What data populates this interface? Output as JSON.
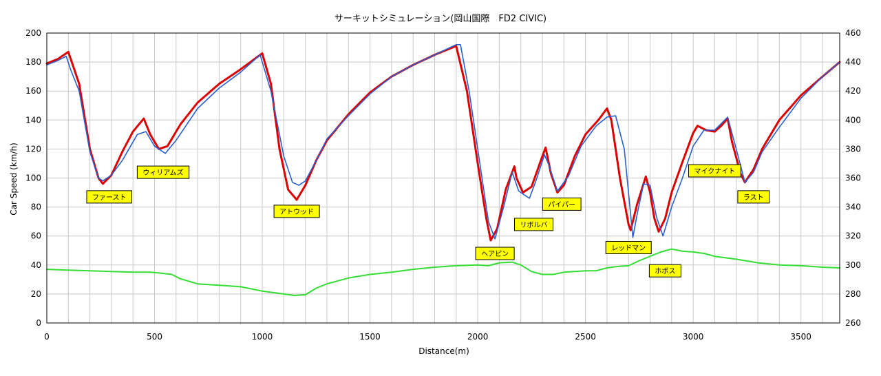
{
  "chart_data": {
    "type": "line",
    "title": "サーキットシミュレーション(岡山国際　FD2 CIVIC)",
    "xlabel": "Distance(m)",
    "ylabel": "Car Speed (km/h)",
    "y2label": "",
    "xlim": [
      0,
      3680
    ],
    "ylim": [
      0,
      200
    ],
    "y2lim": [
      260,
      460
    ],
    "xticks": [
      0,
      500,
      1000,
      1500,
      2000,
      2500,
      3000,
      3500
    ],
    "yticks": [
      0,
      20,
      40,
      60,
      80,
      100,
      120,
      140,
      160,
      180,
      200
    ],
    "y2ticks": [
      260,
      280,
      300,
      320,
      340,
      360,
      380,
      400,
      420,
      440,
      460
    ],
    "grid": true,
    "colors": {
      "simulated": "#dd0000",
      "measured": "#2a5fd0",
      "elevation": "#33dd33"
    },
    "series": [
      {
        "key": "simulated",
        "axis": "left",
        "points": [
          [
            0,
            179
          ],
          [
            50,
            182
          ],
          [
            100,
            187
          ],
          [
            150,
            165
          ],
          [
            200,
            120
          ],
          [
            240,
            100
          ],
          [
            260,
            96
          ],
          [
            300,
            102
          ],
          [
            350,
            118
          ],
          [
            400,
            132
          ],
          [
            450,
            141
          ],
          [
            480,
            130
          ],
          [
            520,
            120
          ],
          [
            560,
            122
          ],
          [
            620,
            137
          ],
          [
            700,
            152
          ],
          [
            800,
            165
          ],
          [
            900,
            175
          ],
          [
            1000,
            186
          ],
          [
            1040,
            165
          ],
          [
            1080,
            120
          ],
          [
            1120,
            92
          ],
          [
            1160,
            85
          ],
          [
            1200,
            95
          ],
          [
            1250,
            112
          ],
          [
            1300,
            126
          ],
          [
            1400,
            144
          ],
          [
            1500,
            159
          ],
          [
            1600,
            170
          ],
          [
            1700,
            178
          ],
          [
            1800,
            185
          ],
          [
            1900,
            191
          ],
          [
            1950,
            160
          ],
          [
            2000,
            110
          ],
          [
            2040,
            72
          ],
          [
            2060,
            57
          ],
          [
            2090,
            65
          ],
          [
            2130,
            92
          ],
          [
            2170,
            108
          ],
          [
            2180,
            100
          ],
          [
            2210,
            90
          ],
          [
            2250,
            94
          ],
          [
            2300,
            115
          ],
          [
            2315,
            121
          ],
          [
            2340,
            103
          ],
          [
            2370,
            90
          ],
          [
            2400,
            95
          ],
          [
            2450,
            115
          ],
          [
            2500,
            130
          ],
          [
            2560,
            140
          ],
          [
            2600,
            148
          ],
          [
            2620,
            140
          ],
          [
            2660,
            100
          ],
          [
            2700,
            68
          ],
          [
            2710,
            64
          ],
          [
            2740,
            82
          ],
          [
            2780,
            101
          ],
          [
            2800,
            90
          ],
          [
            2820,
            72
          ],
          [
            2840,
            63
          ],
          [
            2870,
            72
          ],
          [
            2900,
            90
          ],
          [
            2950,
            111
          ],
          [
            3000,
            131
          ],
          [
            3020,
            136
          ],
          [
            3060,
            133
          ],
          [
            3100,
            132
          ],
          [
            3130,
            136
          ],
          [
            3160,
            141
          ],
          [
            3180,
            125
          ],
          [
            3220,
            103
          ],
          [
            3240,
            97
          ],
          [
            3280,
            106
          ],
          [
            3320,
            120
          ],
          [
            3400,
            140
          ],
          [
            3500,
            157
          ],
          [
            3600,
            170
          ],
          [
            3680,
            180
          ]
        ]
      },
      {
        "key": "measured",
        "axis": "left",
        "points": [
          [
            0,
            178
          ],
          [
            50,
            181
          ],
          [
            90,
            184
          ],
          [
            110,
            175
          ],
          [
            150,
            160
          ],
          [
            200,
            118
          ],
          [
            240,
            100
          ],
          [
            260,
            98
          ],
          [
            300,
            102
          ],
          [
            350,
            112
          ],
          [
            420,
            130
          ],
          [
            460,
            132
          ],
          [
            500,
            122
          ],
          [
            550,
            117
          ],
          [
            600,
            126
          ],
          [
            700,
            148
          ],
          [
            800,
            162
          ],
          [
            900,
            173
          ],
          [
            990,
            185
          ],
          [
            1040,
            160
          ],
          [
            1100,
            115
          ],
          [
            1140,
            97
          ],
          [
            1170,
            95
          ],
          [
            1200,
            98
          ],
          [
            1250,
            112
          ],
          [
            1300,
            127
          ],
          [
            1400,
            143
          ],
          [
            1500,
            158
          ],
          [
            1600,
            170
          ],
          [
            1700,
            178
          ],
          [
            1800,
            185
          ],
          [
            1900,
            192
          ],
          [
            1920,
            192
          ],
          [
            1960,
            160
          ],
          [
            2000,
            120
          ],
          [
            2050,
            70
          ],
          [
            2080,
            58
          ],
          [
            2120,
            80
          ],
          [
            2160,
            104
          ],
          [
            2190,
            91
          ],
          [
            2220,
            88
          ],
          [
            2240,
            86
          ],
          [
            2270,
            98
          ],
          [
            2310,
            116
          ],
          [
            2330,
            109
          ],
          [
            2370,
            91
          ],
          [
            2420,
            101
          ],
          [
            2480,
            122
          ],
          [
            2550,
            136
          ],
          [
            2600,
            142
          ],
          [
            2640,
            143
          ],
          [
            2680,
            120
          ],
          [
            2720,
            59
          ],
          [
            2740,
            75
          ],
          [
            2770,
            96
          ],
          [
            2800,
            95
          ],
          [
            2830,
            73
          ],
          [
            2860,
            60
          ],
          [
            2900,
            80
          ],
          [
            2950,
            100
          ],
          [
            3000,
            122
          ],
          [
            3050,
            133
          ],
          [
            3100,
            133
          ],
          [
            3160,
            142
          ],
          [
            3200,
            120
          ],
          [
            3240,
            97
          ],
          [
            3280,
            104
          ],
          [
            3320,
            118
          ],
          [
            3400,
            135
          ],
          [
            3500,
            155
          ],
          [
            3600,
            170
          ],
          [
            3680,
            180
          ]
        ]
      },
      {
        "key": "elevation",
        "axis": "right",
        "points": [
          [
            0,
            297
          ],
          [
            100,
            296.5
          ],
          [
            200,
            296
          ],
          [
            300,
            295.5
          ],
          [
            400,
            295
          ],
          [
            480,
            295
          ],
          [
            520,
            294.5
          ],
          [
            580,
            293.5
          ],
          [
            620,
            290.5
          ],
          [
            700,
            287
          ],
          [
            800,
            286
          ],
          [
            900,
            285
          ],
          [
            1000,
            282
          ],
          [
            1100,
            280
          ],
          [
            1150,
            279
          ],
          [
            1200,
            279.5
          ],
          [
            1250,
            284
          ],
          [
            1300,
            287
          ],
          [
            1400,
            291
          ],
          [
            1500,
            293.5
          ],
          [
            1600,
            295
          ],
          [
            1700,
            297
          ],
          [
            1800,
            298.5
          ],
          [
            1900,
            299.5
          ],
          [
            2000,
            300
          ],
          [
            2050,
            299.5
          ],
          [
            2100,
            301.5
          ],
          [
            2160,
            302
          ],
          [
            2200,
            300
          ],
          [
            2250,
            295.5
          ],
          [
            2300,
            293.5
          ],
          [
            2350,
            293.5
          ],
          [
            2400,
            295
          ],
          [
            2500,
            296
          ],
          [
            2550,
            296
          ],
          [
            2600,
            298
          ],
          [
            2650,
            299
          ],
          [
            2700,
            299.5
          ],
          [
            2750,
            303
          ],
          [
            2800,
            306
          ],
          [
            2850,
            309
          ],
          [
            2900,
            311
          ],
          [
            2950,
            309.5
          ],
          [
            3000,
            309
          ],
          [
            3050,
            308
          ],
          [
            3100,
            306
          ],
          [
            3200,
            304
          ],
          [
            3300,
            301.5
          ],
          [
            3400,
            300
          ],
          [
            3500,
            299.5
          ],
          [
            3600,
            298.5
          ],
          [
            3680,
            298
          ]
        ]
      }
    ],
    "annotations": [
      {
        "text": "ファースト",
        "x": 290,
        "y": 87
      },
      {
        "text": "ウィリアムズ",
        "x": 540,
        "y": 104
      },
      {
        "text": "アトウッド",
        "x": 1160,
        "y": 77
      },
      {
        "text": "ヘアピン",
        "x": 2080,
        "y": 48
      },
      {
        "text": "リボルバ",
        "x": 2260,
        "y": 68
      },
      {
        "text": "パイパー",
        "x": 2390,
        "y": 82
      },
      {
        "text": "レッドマン",
        "x": 2700,
        "y": 52
      },
      {
        "text": "ホボス",
        "x": 2870,
        "y": 36
      },
      {
        "text": "マイクナイト",
        "x": 3100,
        "y": 105
      },
      {
        "text": "ラスト",
        "x": 3280,
        "y": 87
      }
    ]
  }
}
